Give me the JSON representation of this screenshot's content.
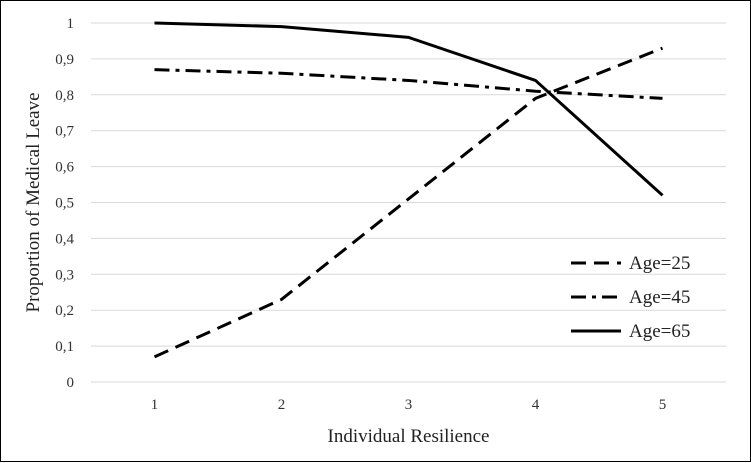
{
  "chart_data": {
    "type": "line",
    "xlabel": "Individual Resilience",
    "ylabel": "Proportion of Medical Leave",
    "categories": [
      "1",
      "2",
      "3",
      "4",
      "5"
    ],
    "x": [
      1,
      2,
      3,
      4,
      5
    ],
    "ylim": [
      0,
      1
    ],
    "yticks": [
      "0",
      "0,1",
      "0,2",
      "0,3",
      "0,4",
      "0,5",
      "0,6",
      "0,7",
      "0,8",
      "0,9",
      "1"
    ],
    "grid": true,
    "legend_position": "bottom-right",
    "series": [
      {
        "name": "Age=25",
        "style": "dashed",
        "color": "#000000",
        "values": [
          0.07,
          0.23,
          0.51,
          0.79,
          0.93
        ]
      },
      {
        "name": "Age=45",
        "style": "dash-dot",
        "color": "#000000",
        "values": [
          0.87,
          0.86,
          0.84,
          0.81,
          0.79
        ]
      },
      {
        "name": "Age=65",
        "style": "solid",
        "color": "#000000",
        "values": [
          1.0,
          0.99,
          0.96,
          0.84,
          0.52
        ]
      }
    ]
  }
}
